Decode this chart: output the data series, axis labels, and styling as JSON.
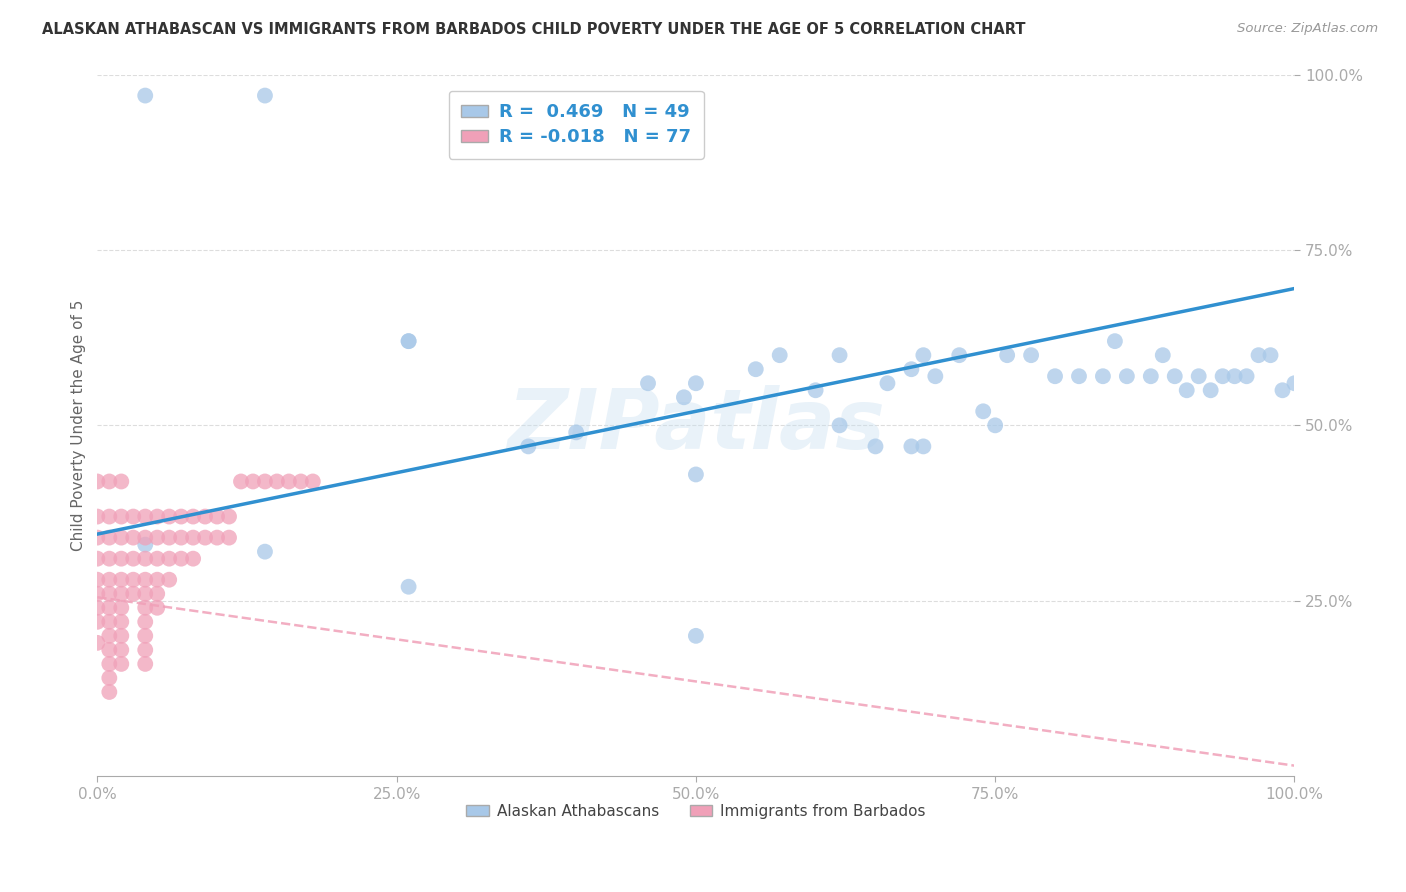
{
  "title": "ALASKAN ATHABASCAN VS IMMIGRANTS FROM BARBADOS CHILD POVERTY UNDER THE AGE OF 5 CORRELATION CHART",
  "source": "Source: ZipAtlas.com",
  "ylabel": "Child Poverty Under the Age of 5",
  "r_blue": 0.469,
  "n_blue": 49,
  "r_pink": -0.018,
  "n_pink": 77,
  "legend_label_blue": "Alaskan Athabascans",
  "legend_label_pink": "Immigrants from Barbados",
  "color_blue": "#a8c8e8",
  "color_pink": "#f0a0b8",
  "trendline_blue": "#3090d0",
  "trendline_pink": "#f0a0b8",
  "background_color": "#ffffff",
  "blue_points_x": [
    0.04,
    0.14,
    0.26,
    0.26,
    0.36,
    0.4,
    0.46,
    0.49,
    0.5,
    0.5,
    0.55,
    0.57,
    0.6,
    0.62,
    0.62,
    0.65,
    0.66,
    0.68,
    0.69,
    0.7,
    0.72,
    0.74,
    0.75,
    0.76,
    0.78,
    0.8,
    0.82,
    0.84,
    0.85,
    0.86,
    0.88,
    0.89,
    0.9,
    0.91,
    0.92,
    0.93,
    0.94,
    0.95,
    0.96,
    0.97,
    0.98,
    0.99,
    1.0,
    0.68,
    0.69,
    0.04,
    0.14,
    0.26,
    0.5
  ],
  "blue_points_y": [
    0.97,
    0.97,
    0.62,
    0.62,
    0.47,
    0.49,
    0.56,
    0.54,
    0.56,
    0.43,
    0.58,
    0.6,
    0.55,
    0.6,
    0.5,
    0.47,
    0.56,
    0.58,
    0.6,
    0.57,
    0.6,
    0.52,
    0.5,
    0.6,
    0.6,
    0.57,
    0.57,
    0.57,
    0.62,
    0.57,
    0.57,
    0.6,
    0.57,
    0.55,
    0.57,
    0.55,
    0.57,
    0.57,
    0.57,
    0.6,
    0.6,
    0.55,
    0.56,
    0.47,
    0.47,
    0.33,
    0.32,
    0.27,
    0.2
  ],
  "pink_points_x": [
    0.0,
    0.0,
    0.0,
    0.0,
    0.0,
    0.0,
    0.0,
    0.0,
    0.01,
    0.01,
    0.01,
    0.01,
    0.01,
    0.01,
    0.01,
    0.01,
    0.01,
    0.01,
    0.01,
    0.01,
    0.02,
    0.02,
    0.02,
    0.02,
    0.02,
    0.02,
    0.02,
    0.02,
    0.02,
    0.02,
    0.03,
    0.03,
    0.03,
    0.03,
    0.03,
    0.04,
    0.04,
    0.04,
    0.04,
    0.04,
    0.04,
    0.04,
    0.04,
    0.04,
    0.04,
    0.05,
    0.05,
    0.05,
    0.05,
    0.05,
    0.05,
    0.06,
    0.06,
    0.06,
    0.06,
    0.07,
    0.07,
    0.07,
    0.08,
    0.08,
    0.08,
    0.09,
    0.09,
    0.1,
    0.1,
    0.11,
    0.11,
    0.12,
    0.13,
    0.14,
    0.15,
    0.16,
    0.17,
    0.18,
    0.0,
    0.01,
    0.02
  ],
  "pink_points_y": [
    0.37,
    0.34,
    0.31,
    0.28,
    0.26,
    0.24,
    0.22,
    0.19,
    0.37,
    0.34,
    0.31,
    0.28,
    0.26,
    0.24,
    0.22,
    0.2,
    0.18,
    0.16,
    0.14,
    0.12,
    0.37,
    0.34,
    0.31,
    0.28,
    0.26,
    0.24,
    0.22,
    0.2,
    0.18,
    0.16,
    0.37,
    0.34,
    0.31,
    0.28,
    0.26,
    0.37,
    0.34,
    0.31,
    0.28,
    0.26,
    0.24,
    0.22,
    0.2,
    0.18,
    0.16,
    0.37,
    0.34,
    0.31,
    0.28,
    0.26,
    0.24,
    0.37,
    0.34,
    0.31,
    0.28,
    0.37,
    0.34,
    0.31,
    0.37,
    0.34,
    0.31,
    0.37,
    0.34,
    0.37,
    0.34,
    0.37,
    0.34,
    0.42,
    0.42,
    0.42,
    0.42,
    0.42,
    0.42,
    0.42,
    0.42,
    0.42,
    0.42
  ],
  "xlim": [
    0.0,
    1.0
  ],
  "ylim": [
    0.0,
    1.0
  ],
  "xticks": [
    0.0,
    0.25,
    0.5,
    0.75,
    1.0
  ],
  "xtick_labels": [
    "0.0%",
    "25.0%",
    "50.0%",
    "75.0%",
    "100.0%"
  ],
  "yticks": [
    0.25,
    0.5,
    0.75,
    1.0
  ],
  "ytick_labels": [
    "25.0%",
    "50.0%",
    "75.0%",
    "100.0%"
  ],
  "blue_trend_x": [
    0.0,
    1.0
  ],
  "blue_trend_y": [
    0.345,
    0.695
  ],
  "pink_trend_x": [
    0.0,
    1.0
  ],
  "pink_trend_y": [
    0.255,
    0.015
  ]
}
